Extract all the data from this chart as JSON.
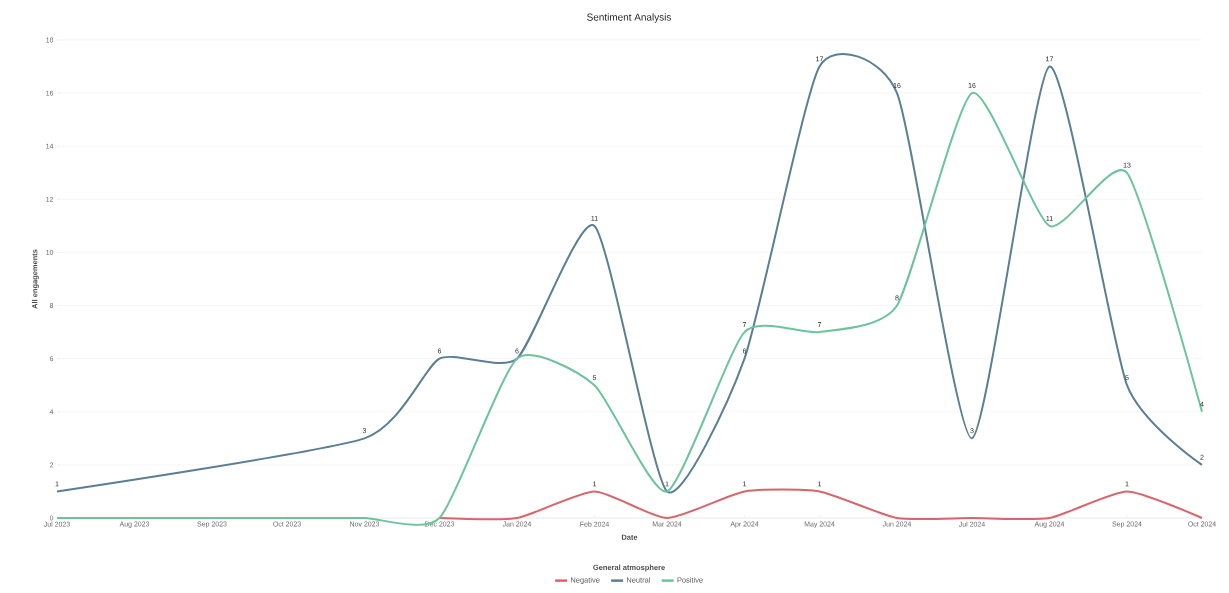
{
  "chart_data": {
    "type": "line",
    "title": "Sentiment Analysis",
    "xlabel": "Date",
    "ylabel": "All engagements",
    "legend_title": "General atmosphere",
    "legend": "bottom",
    "grid": "y",
    "marker": "none",
    "line_style": "solid",
    "xlim": [
      "2023-07",
      "2024-10"
    ],
    "xticks": [
      {
        "value": "2023-07",
        "label": "Jul 2023"
      },
      {
        "value": "2023-08",
        "label": "Aug 2023"
      },
      {
        "value": "2023-09",
        "label": "Sep 2023"
      },
      {
        "value": "2023-10",
        "label": "Oct 2023"
      },
      {
        "value": "2023-11",
        "label": "Nov 2023"
      },
      {
        "value": "2023-12",
        "label": "Dec 2023"
      },
      {
        "value": "2024-01",
        "label": "Jan 2024"
      },
      {
        "value": "2024-02",
        "label": "Feb 2024"
      },
      {
        "value": "2024-03",
        "label": "Mar 2024"
      },
      {
        "value": "2024-04",
        "label": "Apr 2024"
      },
      {
        "value": "2024-05",
        "label": "May 2024"
      },
      {
        "value": "2024-06",
        "label": "Jun 2024"
      },
      {
        "value": "2024-07",
        "label": "Jul 2024"
      },
      {
        "value": "2024-08",
        "label": "Aug 2024"
      },
      {
        "value": "2024-09",
        "label": "Sep 2024"
      },
      {
        "value": "2024-10",
        "label": "Oct 2024"
      }
    ],
    "ylim": [
      0,
      18
    ],
    "yticks": [
      0,
      2,
      4,
      6,
      8,
      10,
      12,
      14,
      16,
      18
    ],
    "series": [
      {
        "name": "Negative",
        "color": "#d9646b",
        "x": [
          "2023-12",
          "2024-01",
          "2024-02",
          "2024-03",
          "2024-04",
          "2024-05",
          "2024-06",
          "2024-07",
          "2024-08",
          "2024-09",
          "2024-10"
        ],
        "values": [
          0,
          0,
          1,
          0,
          1,
          1,
          0,
          0,
          0,
          1,
          0
        ],
        "value_labels": [
          null,
          null,
          "1",
          null,
          "1",
          "1",
          null,
          null,
          null,
          "1",
          null
        ]
      },
      {
        "name": "Neutral",
        "color": "#5a7f94",
        "x": [
          "2023-07",
          "2023-11",
          "2023-12",
          "2024-01",
          "2024-02",
          "2024-03",
          "2024-04",
          "2024-05",
          "2024-06",
          "2024-07",
          "2024-08",
          "2024-09",
          "2024-10"
        ],
        "values": [
          1,
          3,
          6,
          6,
          11,
          1,
          6,
          17,
          16,
          3,
          17,
          5,
          2
        ],
        "value_labels": [
          "1",
          "3",
          "6",
          "6",
          "11",
          "1",
          "6",
          "17",
          "16",
          "3",
          "17",
          "5",
          "2"
        ]
      },
      {
        "name": "Positive",
        "color": "#6cc49a",
        "x": [
          "2023-07",
          "2023-08",
          "2023-09",
          "2023-10",
          "2023-11",
          "2023-12",
          "2024-01",
          "2024-02",
          "2024-03",
          "2024-04",
          "2024-05",
          "2024-06",
          "2024-07",
          "2024-08",
          "2024-09",
          "2024-10"
        ],
        "values": [
          0,
          0,
          0,
          0,
          0,
          0,
          6,
          5,
          1,
          7,
          7,
          8,
          16,
          11,
          13,
          4
        ],
        "value_labels": [
          null,
          null,
          null,
          null,
          null,
          null,
          null,
          "5",
          null,
          "7",
          "7",
          "8",
          "16",
          "11",
          "13",
          "4"
        ]
      }
    ]
  }
}
